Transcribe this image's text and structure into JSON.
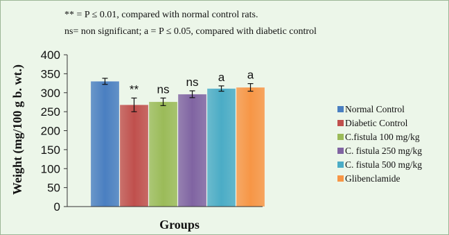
{
  "notes": {
    "line1": "** = P ≤ 0.01, compared with normal control rats.",
    "line2": "ns= non significant; a = P ≤ 0.05, compared with diabetic control"
  },
  "chart_data": {
    "type": "bar",
    "categories": [
      "Normal Control",
      "Diabetic Control",
      "C.fistula 100 mg/kg",
      "C. fistula 250 mg/kg",
      "C. fistula 500 mg/kg",
      "Glibenclamide"
    ],
    "values": [
      330,
      268,
      276,
      296,
      311,
      314
    ],
    "errors": [
      8,
      18,
      10,
      9,
      7,
      10
    ],
    "annotations": [
      "",
      "**",
      "ns",
      "ns",
      "a",
      "a"
    ],
    "colors": [
      "#4a7fc1",
      "#c0504d",
      "#9bbb59",
      "#8064a2",
      "#4bacc6",
      "#f79646"
    ],
    "xlabel": "Groups",
    "ylabel": "Weight (mg/100 g b. wt.)",
    "ylim": [
      0,
      400
    ],
    "yticks": [
      0,
      50,
      100,
      150,
      200,
      250,
      300,
      350,
      400
    ],
    "legend_position": "right",
    "grid": false
  }
}
